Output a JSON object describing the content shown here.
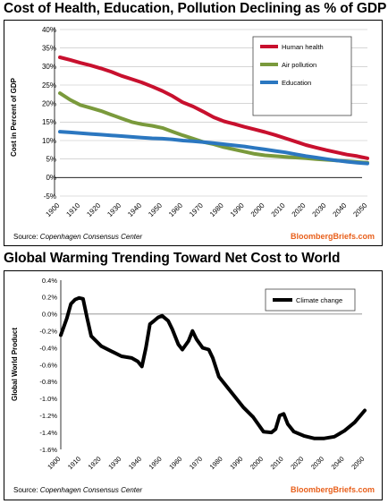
{
  "chart_data": [
    {
      "type": "line",
      "title": "Cost of Health, Education, Pollution Declining as % of GDP",
      "ylabel": "Cost in Percent of GDP",
      "xlabel": "",
      "xlim": [
        1900,
        2050
      ],
      "ylim": [
        -5,
        40
      ],
      "x_ticks": [
        "1900",
        "1910",
        "1920",
        "1930",
        "1940",
        "1950",
        "1960",
        "1970",
        "1980",
        "1990",
        "2000",
        "2010",
        "2020",
        "2030",
        "2040",
        "2050"
      ],
      "y_ticks": [
        "-5%",
        "0%",
        "5%",
        "10%",
        "15%",
        "20%",
        "25%",
        "30%",
        "35%",
        "40%"
      ],
      "y_tick_values": [
        -5,
        0,
        5,
        10,
        15,
        20,
        25,
        30,
        35,
        40
      ],
      "grid": true,
      "legend_position": "top-right",
      "source_prefix": "Source: ",
      "source_name": "Copenhagen Consensus Center",
      "brand": "BloombergBriefs.com",
      "brand_color": "#e8601c",
      "series": [
        {
          "name": "Human health",
          "color": "#c8102e",
          "x": [
            1900,
            1905,
            1910,
            1915,
            1920,
            1925,
            1930,
            1935,
            1940,
            1945,
            1950,
            1955,
            1960,
            1965,
            1970,
            1975,
            1980,
            1985,
            1990,
            1995,
            2000,
            2005,
            2010,
            2015,
            2020,
            2025,
            2030,
            2035,
            2040,
            2045,
            2050
          ],
          "values": [
            32.5,
            31.8,
            31.0,
            30.3,
            29.5,
            28.6,
            27.5,
            26.6,
            25.7,
            24.6,
            23.4,
            22.0,
            20.3,
            19.2,
            17.8,
            16.3,
            15.2,
            14.5,
            13.7,
            13.0,
            12.3,
            11.5,
            10.6,
            9.7,
            8.8,
            8.1,
            7.4,
            6.8,
            6.2,
            5.8,
            5.2
          ]
        },
        {
          "name": "Air pollution",
          "color": "#7a9a3c",
          "x": [
            1900,
            1905,
            1910,
            1915,
            1920,
            1925,
            1930,
            1935,
            1940,
            1945,
            1950,
            1955,
            1960,
            1965,
            1970,
            1975,
            1980,
            1985,
            1990,
            1995,
            2000,
            2005,
            2010,
            2015,
            2020,
            2025,
            2030,
            2035,
            2040,
            2045,
            2050
          ],
          "values": [
            22.8,
            21.0,
            19.6,
            18.8,
            18.0,
            17.0,
            16.0,
            15.0,
            14.4,
            14.0,
            13.4,
            12.4,
            11.4,
            10.5,
            9.6,
            9.0,
            8.2,
            7.6,
            7.0,
            6.4,
            6.0,
            5.8,
            5.6,
            5.4,
            5.2,
            5.0,
            4.8,
            4.6,
            4.4,
            4.2,
            4.0
          ]
        },
        {
          "name": "Education",
          "color": "#2b77c0",
          "x": [
            1900,
            1905,
            1910,
            1915,
            1920,
            1925,
            1930,
            1935,
            1940,
            1945,
            1950,
            1955,
            1960,
            1965,
            1970,
            1975,
            1980,
            1985,
            1990,
            1995,
            2000,
            2005,
            2010,
            2015,
            2020,
            2025,
            2030,
            2035,
            2040,
            2045,
            2050
          ],
          "values": [
            12.4,
            12.2,
            12.0,
            11.8,
            11.6,
            11.4,
            11.2,
            11.0,
            10.8,
            10.6,
            10.5,
            10.3,
            10.0,
            9.8,
            9.6,
            9.3,
            9.0,
            8.7,
            8.4,
            8.0,
            7.6,
            7.2,
            6.8,
            6.3,
            5.8,
            5.4,
            5.0,
            4.6,
            4.3,
            4.0,
            3.8
          ]
        }
      ]
    },
    {
      "type": "line",
      "title": "Global Warming Trending Toward Net Cost to World",
      "ylabel": "Global World Product",
      "xlabel": "",
      "xlim": [
        1900,
        2050
      ],
      "ylim": [
        -1.6,
        0.4
      ],
      "x_ticks": [
        "1900",
        "1910",
        "1920",
        "1930",
        "1940",
        "1950",
        "1960",
        "1970",
        "1980",
        "1990",
        "2000",
        "2010",
        "2020",
        "2030",
        "2040",
        "2050"
      ],
      "y_ticks": [
        "-1.6%",
        "-1.4%",
        "-1.2%",
        "-1.0%",
        "-0.8%",
        "-0.6%",
        "-0.4%",
        "-0.2%",
        "0.0%",
        "0.2%",
        "0.4%"
      ],
      "y_tick_values": [
        -1.6,
        -1.4,
        -1.2,
        -1.0,
        -0.8,
        -0.6,
        -0.4,
        -0.2,
        0.0,
        0.2,
        0.4
      ],
      "grid": false,
      "legend_position": "top-right",
      "source_prefix": "Source: ",
      "source_name": "Copenhagen Consensus Center",
      "brand": "BloombergBriefs.com",
      "brand_color": "#e8601c",
      "series": [
        {
          "name": "Climate change",
          "color": "#000000",
          "x": [
            1900,
            1903,
            1905,
            1907,
            1909,
            1911,
            1913,
            1915,
            1920,
            1925,
            1930,
            1935,
            1938,
            1940,
            1942,
            1944,
            1946,
            1948,
            1950,
            1953,
            1955,
            1958,
            1960,
            1963,
            1965,
            1967,
            1970,
            1973,
            1975,
            1978,
            1980,
            1985,
            1990,
            1995,
            2000,
            2004,
            2006,
            2008,
            2010,
            2012,
            2015,
            2020,
            2025,
            2030,
            2035,
            2040,
            2045,
            2050
          ],
          "values": [
            -0.25,
            -0.05,
            0.12,
            0.17,
            0.19,
            0.18,
            -0.05,
            -0.26,
            -0.38,
            -0.44,
            -0.5,
            -0.52,
            -0.56,
            -0.62,
            -0.4,
            -0.12,
            -0.08,
            -0.04,
            -0.02,
            -0.08,
            -0.18,
            -0.36,
            -0.42,
            -0.32,
            -0.2,
            -0.3,
            -0.4,
            -0.42,
            -0.52,
            -0.74,
            -0.8,
            -0.95,
            -1.1,
            -1.22,
            -1.39,
            -1.4,
            -1.36,
            -1.2,
            -1.18,
            -1.3,
            -1.39,
            -1.44,
            -1.47,
            -1.47,
            -1.45,
            -1.38,
            -1.28,
            -1.14
          ]
        }
      ]
    }
  ]
}
